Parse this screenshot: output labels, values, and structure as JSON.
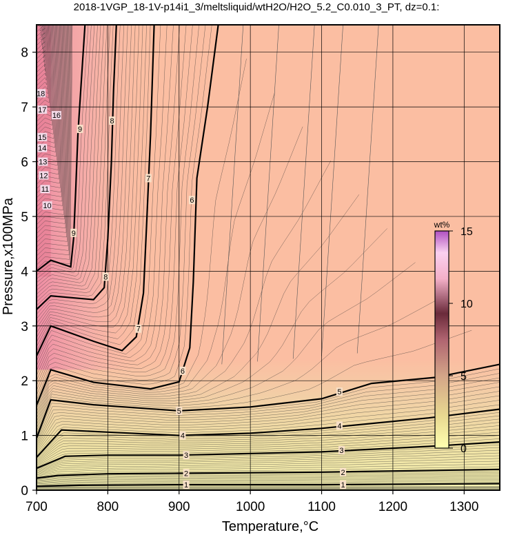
{
  "chart_data": {
    "type": "contour",
    "title": "2018-1VGP_18-1V-p14i1_3/meltsliquid/wtH2O/H2O_5.2_C0.010_3_PT, dz=0.1:",
    "xlabel": "Temperature,°C",
    "ylabel": "Pressure,x100MPa",
    "xlim": [
      700,
      1350
    ],
    "ylim": [
      0,
      8.5
    ],
    "x_ticks": [
      700,
      800,
      900,
      1000,
      1100,
      1200,
      1300
    ],
    "y_ticks": [
      0,
      1,
      2,
      3,
      4,
      5,
      6,
      7,
      8
    ],
    "grid": true,
    "colorbar": {
      "label": "wt%",
      "range": [
        0,
        15
      ],
      "ticks": [
        0,
        5,
        10,
        15
      ],
      "position": "right-inside"
    },
    "contour_interval": 0.1,
    "major_contours": [
      {
        "level": 1,
        "points": [
          [
            700,
            0.07
          ],
          [
            760,
            0.09
          ],
          [
            900,
            0.1
          ],
          [
            1100,
            0.1
          ],
          [
            1350,
            0.12
          ]
        ]
      },
      {
        "level": 2,
        "points": [
          [
            700,
            0.22
          ],
          [
            730,
            0.27
          ],
          [
            800,
            0.3
          ],
          [
            900,
            0.31
          ],
          [
            1100,
            0.33
          ],
          [
            1350,
            0.38
          ]
        ]
      },
      {
        "level": 3,
        "points": [
          [
            700,
            0.4
          ],
          [
            740,
            0.62
          ],
          [
            800,
            0.64
          ],
          [
            900,
            0.64
          ],
          [
            1100,
            0.7
          ],
          [
            1250,
            0.8
          ],
          [
            1350,
            0.88
          ]
        ]
      },
      {
        "level": 4,
        "points": [
          [
            700,
            0.6
          ],
          [
            735,
            1.1
          ],
          [
            800,
            1.06
          ],
          [
            900,
            1.0
          ],
          [
            1000,
            1.04
          ],
          [
            1100,
            1.13
          ],
          [
            1250,
            1.32
          ],
          [
            1350,
            1.48
          ]
        ]
      },
      {
        "level": 5,
        "points": [
          [
            700,
            0.95
          ],
          [
            720,
            1.65
          ],
          [
            780,
            1.56
          ],
          [
            900,
            1.45
          ],
          [
            1000,
            1.52
          ],
          [
            1100,
            1.67
          ],
          [
            1170,
            1.95
          ],
          [
            1260,
            2.06
          ],
          [
            1350,
            2.3
          ]
        ]
      },
      {
        "level": 6,
        "points": [
          [
            700,
            1.55
          ],
          [
            720,
            2.2
          ],
          [
            780,
            1.97
          ],
          [
            860,
            1.85
          ],
          [
            900,
            1.98
          ],
          [
            915,
            2.6
          ],
          [
            920,
            3.8
          ],
          [
            925,
            5.7
          ],
          [
            940,
            7.0
          ],
          [
            955,
            8.5
          ]
        ]
      },
      {
        "level": 7,
        "points": [
          [
            700,
            2.45
          ],
          [
            720,
            3.0
          ],
          [
            780,
            2.72
          ],
          [
            820,
            2.55
          ],
          [
            840,
            2.8
          ],
          [
            850,
            3.6
          ],
          [
            855,
            5.0
          ],
          [
            860,
            6.5
          ],
          [
            865,
            8.5
          ]
        ]
      },
      {
        "level": 8,
        "points": [
          [
            700,
            3.3
          ],
          [
            720,
            3.55
          ],
          [
            780,
            3.48
          ],
          [
            795,
            3.7
          ],
          [
            800,
            4.6
          ],
          [
            805,
            6.0
          ],
          [
            808,
            7.3
          ],
          [
            812,
            8.5
          ]
        ]
      },
      {
        "level": 9,
        "points": [
          [
            700,
            4.0
          ],
          [
            720,
            4.2
          ],
          [
            748,
            4.08
          ],
          [
            752,
            4.6
          ],
          [
            755,
            5.5
          ],
          [
            758,
            6.5
          ],
          [
            763,
            7.5
          ],
          [
            768,
            8.5
          ]
        ]
      }
    ],
    "contour_labels": [
      {
        "text": "1",
        "x": 910,
        "y": 0.1
      },
      {
        "text": "1",
        "x": 1130,
        "y": 0.1
      },
      {
        "text": "2",
        "x": 910,
        "y": 0.31
      },
      {
        "text": "2",
        "x": 1130,
        "y": 0.33
      },
      {
        "text": "3",
        "x": 910,
        "y": 0.64
      },
      {
        "text": "3",
        "x": 1128,
        "y": 0.73
      },
      {
        "text": "4",
        "x": 905,
        "y": 1.0
      },
      {
        "text": "4",
        "x": 1125,
        "y": 1.18
      },
      {
        "text": "5",
        "x": 900,
        "y": 1.45
      },
      {
        "text": "5",
        "x": 1125,
        "y": 1.8
      },
      {
        "text": "6",
        "x": 905,
        "y": 2.18
      },
      {
        "text": "6",
        "x": 918,
        "y": 5.3
      },
      {
        "text": "7",
        "x": 843,
        "y": 2.95
      },
      {
        "text": "7",
        "x": 857,
        "y": 5.7
      },
      {
        "text": "8",
        "x": 797,
        "y": 3.9
      },
      {
        "text": "8",
        "x": 806,
        "y": 6.75
      },
      {
        "text": "9",
        "x": 752,
        "y": 4.7
      },
      {
        "text": "9",
        "x": 761,
        "y": 6.6
      },
      {
        "text": "10",
        "x": 715,
        "y": 5.2
      },
      {
        "text": "11",
        "x": 712,
        "y": 5.5
      },
      {
        "text": "12",
        "x": 710,
        "y": 5.75
      },
      {
        "text": "13",
        "x": 709,
        "y": 6.0
      },
      {
        "text": "14",
        "x": 708,
        "y": 6.25
      },
      {
        "text": "15",
        "x": 708,
        "y": 6.45
      },
      {
        "text": "16",
        "x": 728,
        "y": 6.85
      },
      {
        "text": "17",
        "x": 708,
        "y": 6.95
      },
      {
        "text": "18",
        "x": 706,
        "y": 7.25
      }
    ],
    "colors": {
      "low": "#ffffd0",
      "mid": "#f4c8a8",
      "high": "#f090a8",
      "max": "#b050b0",
      "background": "#fbbea2"
    }
  }
}
